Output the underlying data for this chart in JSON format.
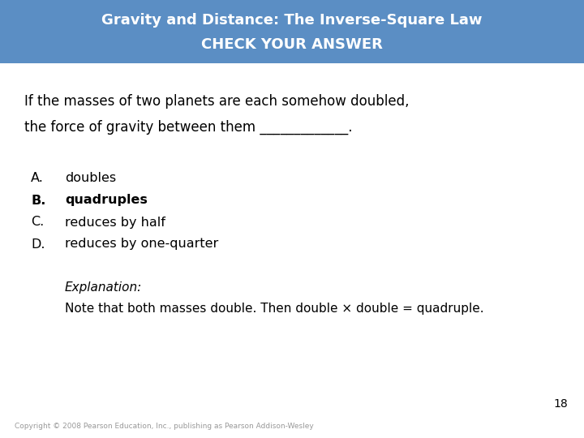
{
  "title_line1": "Gravity and Distance: The Inverse-Square Law",
  "title_line2": "CHECK YOUR ANSWER",
  "header_bg_color": "#5b8ec4",
  "header_text_color": "#ffffff",
  "bg_color": "#ffffff",
  "question_line1": "If the masses of two planets are each somehow doubled,",
  "question_line2_prefix": "the force of gravity between them ",
  "question_line2_blank": "_____________.",
  "options": [
    {
      "label": "A.",
      "text": "doubles",
      "bold": false
    },
    {
      "label": "B.",
      "text": "quadruples",
      "bold": true
    },
    {
      "label": "C.",
      "text": "reduces by half",
      "bold": false
    },
    {
      "label": "D.",
      "text": "reduces by one-quarter",
      "bold": false
    }
  ],
  "explanation_label": "Explanation:",
  "explanation_text": "Note that both masses double. Then double × double = quadruple.",
  "page_number": "18",
  "copyright_text": "Copyright © 2008 Pearson Education, Inc., publishing as Pearson Addison-Wesley",
  "body_text_color": "#000000",
  "title_fontsize": 13,
  "body_fontsize": 12,
  "option_fontsize": 11.5,
  "explanation_fontsize": 11,
  "copyright_fontsize": 6.5,
  "page_num_fontsize": 10
}
